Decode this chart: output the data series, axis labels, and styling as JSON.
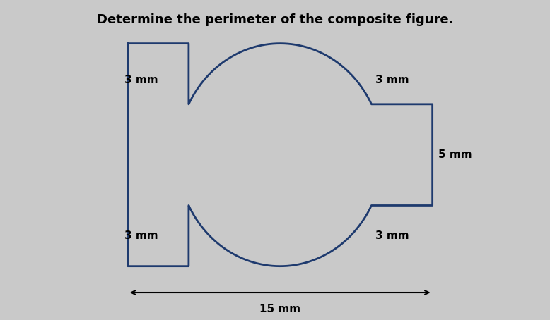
{
  "title": "Determine the perimeter of the composite figure.",
  "title_fontsize": 13,
  "title_fontweight": "bold",
  "bg_color": "#c9c9c9",
  "shape_color": "#1e3a6e",
  "shape_linewidth": 2.0,
  "label_fontsize": 11,
  "label_fontweight": "bold",
  "fig_width": 7.78,
  "fig_height": 4.54,
  "dpi": 100,
  "xlim": [
    -2.5,
    17
  ],
  "ylim": [
    -2.5,
    13
  ]
}
